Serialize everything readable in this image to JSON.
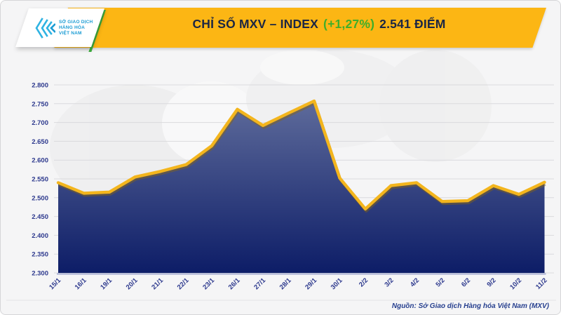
{
  "header": {
    "title_main": "CHỈ SỐ MXV – INDEX",
    "title_change": "(+1,27%)",
    "title_value": "2.541 ĐIỂM",
    "banner_color": "#FCB614",
    "title_color": "#1B2644",
    "change_color": "#3FAE2A"
  },
  "logo": {
    "line1": "SỞ GIAO DỊCH",
    "line2": "HÀNG HÓA",
    "line3": "VIỆT NAM",
    "icon": "nested-chevrons-icon",
    "icon_color": "#2FB3E2",
    "text_color": "#1B9CD4",
    "accent_color": "#3FAE3F"
  },
  "chart_data": {
    "type": "area",
    "title": "CHỈ SỐ MXV – INDEX (+1,27%) 2.541 ĐIỂM",
    "categories": [
      "15/1",
      "16/1",
      "19/1",
      "20/1",
      "21/1",
      "22/1",
      "23/1",
      "26/1",
      "27/1",
      "28/1",
      "29/1",
      "30/1",
      "2/2",
      "3/2",
      "4/2",
      "5/2",
      "6/2",
      "9/2",
      "10/2",
      "11/2"
    ],
    "values": [
      2540,
      2512,
      2515,
      2555,
      2570,
      2588,
      2638,
      2735,
      2692,
      2725,
      2757,
      2552,
      2470,
      2532,
      2540,
      2490,
      2492,
      2532,
      2509,
      2541
    ],
    "last_value": 2541,
    "change_percent": "+1,27%",
    "ylim": [
      2300,
      2800
    ],
    "ytick_values": [
      2800,
      2750,
      2700,
      2650,
      2600,
      2550,
      2500,
      2450,
      2400,
      2350,
      2300
    ],
    "ytick_labels": [
      "2.800",
      "2.750",
      "2.700",
      "2.650",
      "2.600",
      "2.550",
      "2.500",
      "2.450",
      "2.400",
      "2.350",
      "2.300"
    ],
    "grid": true,
    "legend": "none",
    "line_color": "#F3B51D",
    "line_shadow_color": "#8A6510",
    "area_top_color": "#5E6B9B",
    "area_bottom_color": "#0D1D67",
    "axis_label_color": "#2E3A8E",
    "grid_color": "#dadadd",
    "baseline_color": "#A9B0D4"
  },
  "footer": {
    "source": "Nguồn: Sở Giao dịch Hàng hóa Việt Nam (MXV)",
    "source_color": "#27408F"
  }
}
